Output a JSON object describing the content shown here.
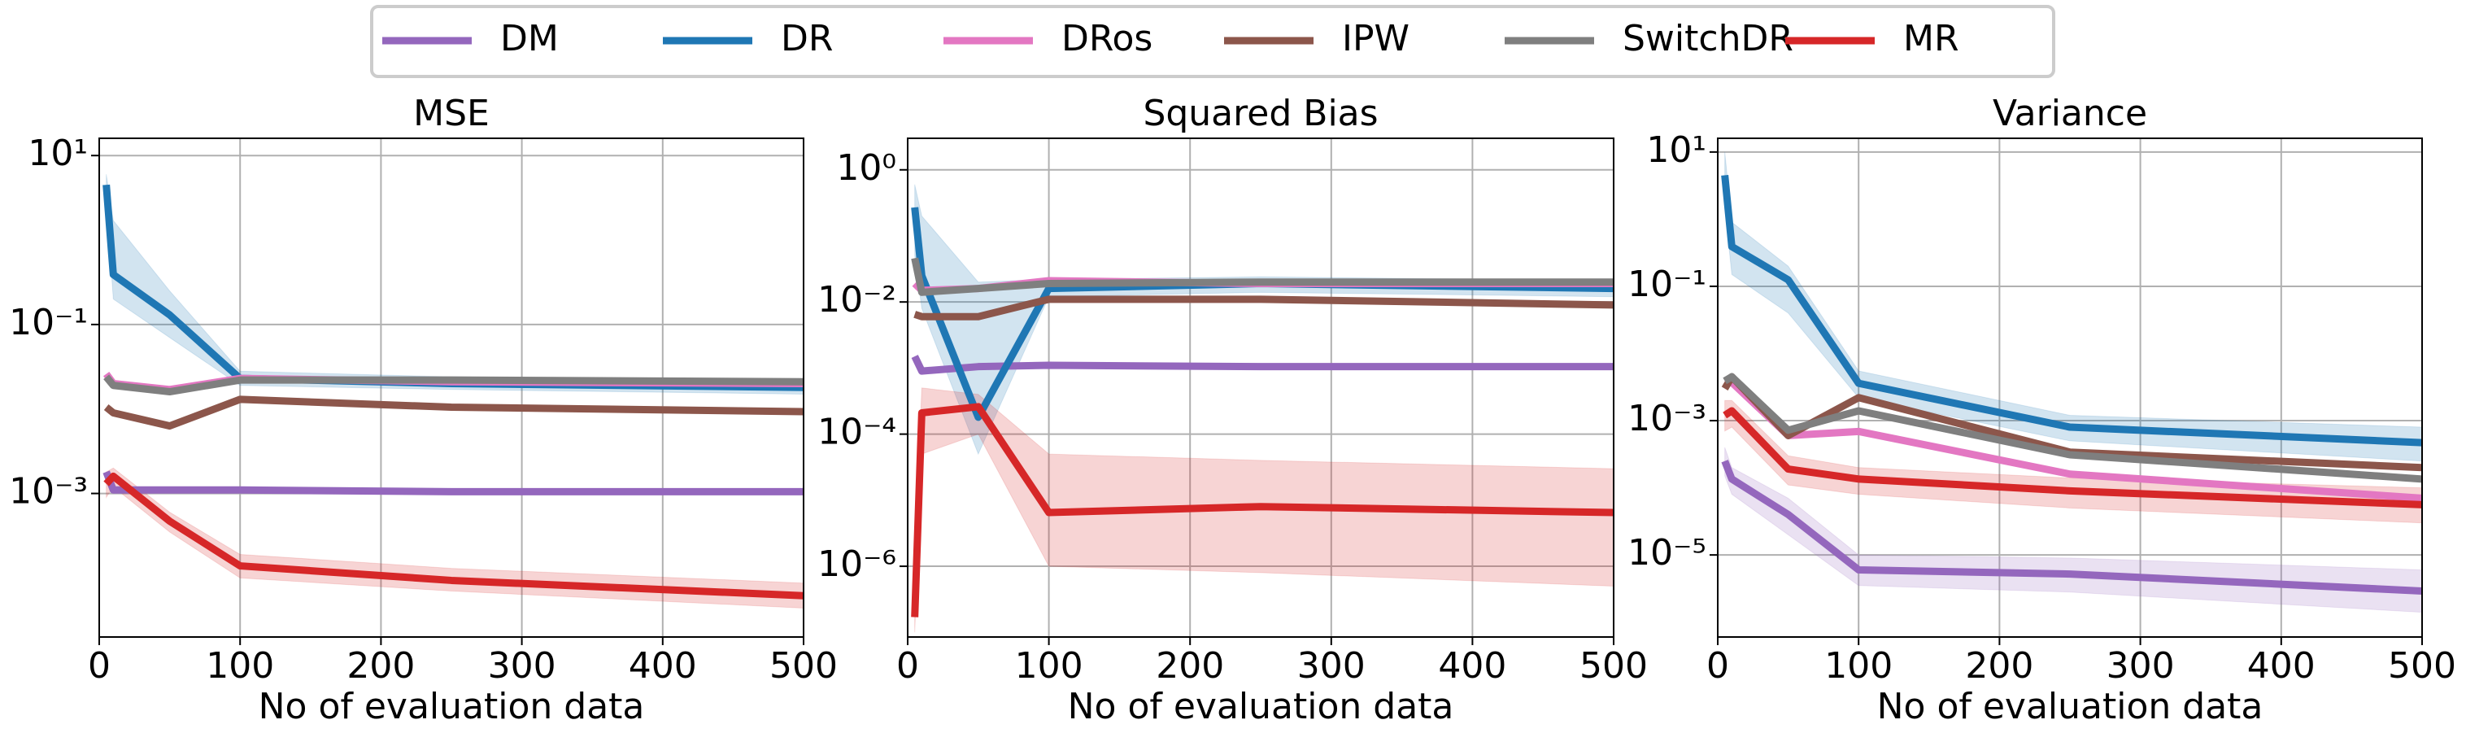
{
  "legend_position": "upper center",
  "chart_data": [
    {
      "type": "line",
      "title": "MSE",
      "xlabel": "No of evaluation data",
      "log_y": true,
      "grid": true,
      "x": [
        5,
        10,
        50,
        100,
        250,
        500
      ],
      "xlim": [
        0,
        500
      ],
      "xticks": [
        0,
        100,
        200,
        300,
        400,
        500
      ],
      "ylim": [
        2e-05,
        16
      ],
      "yticks": [
        {
          "value": 10,
          "label": "10¹"
        },
        {
          "value": 0.1,
          "label": "10⁻¹"
        },
        {
          "value": 0.001,
          "label": "10⁻³"
        }
      ],
      "series": [
        {
          "name": "DM",
          "color": "#9467bd",
          "values": [
            0.0018,
            0.0011,
            0.0011,
            0.0011,
            0.00105,
            0.00105
          ]
        },
        {
          "name": "DR",
          "color": "#1f77b4",
          "values": [
            4.5,
            0.39,
            0.13,
            0.023,
            0.02,
            0.018
          ],
          "band_lower": [
            3,
            0.2,
            0.07,
            0.019,
            0.017,
            0.015
          ],
          "band_upper": [
            6,
            1.7,
            0.25,
            0.028,
            0.024,
            0.022
          ]
        },
        {
          "name": "DRos",
          "color": "#e377c2",
          "values": [
            0.026,
            0.02,
            0.017,
            0.023,
            0.021,
            0.02
          ]
        },
        {
          "name": "IPW",
          "color": "#8c564b",
          "values": [
            0.0105,
            0.009,
            0.0063,
            0.013,
            0.0105,
            0.0093
          ]
        },
        {
          "name": "SwitchDR",
          "color": "#7f7f7f",
          "values": [
            0.024,
            0.019,
            0.016,
            0.022,
            0.022,
            0.021
          ]
        },
        {
          "name": "MR",
          "color": "#d62728",
          "values": [
            0.0013,
            0.0016,
            0.00047,
            0.000139,
            9.35e-05,
            6.17e-05
          ],
          "band_lower": [
            0.0009,
            0.0012,
            0.00035,
            0.0001,
            7e-05,
            4.4e-05
          ],
          "band_upper": [
            0.0018,
            0.002,
            0.0006,
            0.00019,
            0.00013,
            8.7e-05
          ]
        }
      ]
    },
    {
      "type": "line",
      "title": "Squared Bias",
      "xlabel": "No of evaluation data",
      "log_y": true,
      "grid": true,
      "x": [
        5,
        10,
        50,
        100,
        250,
        500
      ],
      "xlim": [
        0,
        500
      ],
      "xticks": [
        0,
        100,
        200,
        300,
        400,
        500
      ],
      "ylim": [
        8.5e-08,
        3
      ],
      "yticks": [
        {
          "value": 1,
          "label": "10⁰"
        },
        {
          "value": 0.01,
          "label": "10⁻²"
        },
        {
          "value": 0.0001,
          "label": "10⁻⁴"
        },
        {
          "value": 1e-06,
          "label": "10⁻⁶"
        }
      ],
      "series": [
        {
          "name": "DM",
          "color": "#9467bd",
          "values": [
            0.0015,
            0.0009,
            0.00105,
            0.0011,
            0.00105,
            0.00105
          ]
        },
        {
          "name": "DR",
          "color": "#1f77b4",
          "values": [
            0.27,
            0.025,
            0.00018,
            0.016,
            0.019,
            0.016
          ],
          "band_lower": [
            0.05,
            0.008,
            5e-05,
            0.012,
            0.014,
            0.012
          ],
          "band_upper": [
            0.6,
            0.2,
            0.02,
            0.022,
            0.024,
            0.021
          ]
        },
        {
          "name": "DRos",
          "color": "#e377c2",
          "values": [
            0.019,
            0.015,
            0.016,
            0.021,
            0.019,
            0.019
          ]
        },
        {
          "name": "IPW",
          "color": "#8c564b",
          "values": [
            0.0065,
            0.006,
            0.006,
            0.011,
            0.011,
            0.009
          ]
        },
        {
          "name": "SwitchDR",
          "color": "#7f7f7f",
          "values": [
            0.046,
            0.014,
            0.016,
            0.019,
            0.02,
            0.02
          ]
        },
        {
          "name": "MR",
          "color": "#d62728",
          "values": [
            1.7e-07,
            0.00021,
            0.00026,
            6.5e-06,
            8e-06,
            6.5e-06
          ],
          "band_lower": [
            1e-07,
            5e-05,
            0.0001,
            1e-06,
            8e-07,
            5e-07
          ],
          "band_upper": [
            1e-06,
            0.0005,
            0.0004,
            5e-05,
            4e-05,
            3e-05
          ]
        }
      ]
    },
    {
      "type": "line",
      "title": "Variance",
      "xlabel": "No of evaluation data",
      "log_y": true,
      "grid": true,
      "x": [
        5,
        10,
        50,
        100,
        250,
        500
      ],
      "xlim": [
        0,
        500
      ],
      "xticks": [
        0,
        100,
        200,
        300,
        400,
        500
      ],
      "ylim": [
        6e-07,
        16
      ],
      "yticks": [
        {
          "value": 10,
          "label": "10¹"
        },
        {
          "value": 0.1,
          "label": "10⁻¹"
        },
        {
          "value": 0.001,
          "label": "10⁻³"
        },
        {
          "value": 1e-05,
          "label": "10⁻⁵"
        }
      ],
      "series": [
        {
          "name": "DM",
          "color": "#9467bd",
          "values": [
            0.00025,
            0.000135,
            4e-05,
            6e-06,
            5.2e-06,
            2.9e-06
          ],
          "band_lower": [
            0.00015,
            8e-05,
            2e-05,
            3.5e-06,
            2.8e-06,
            1.4e-06
          ],
          "band_upper": [
            0.0004,
            0.0002,
            7e-05,
            1e-05,
            9e-06,
            6e-06
          ]
        },
        {
          "name": "DR",
          "color": "#1f77b4",
          "values": [
            4.5,
            0.39,
            0.125,
            0.0036,
            0.0008,
            0.00047
          ],
          "band_lower": [
            1.5,
            0.15,
            0.04,
            0.0022,
            0.0005,
            0.00025
          ],
          "band_upper": [
            10,
            0.9,
            0.2,
            0.0055,
            0.0012,
            0.0008
          ]
        },
        {
          "name": "DRos",
          "color": "#e377c2",
          "values": [
            0.0037,
            0.0037,
            0.0006,
            0.00069,
            0.00016,
            7e-05
          ]
        },
        {
          "name": "IPW",
          "color": "#8c564b",
          "values": [
            0.003,
            0.0045,
            0.0006,
            0.0022,
            0.00034,
            0.0002
          ]
        },
        {
          "name": "SwitchDR",
          "color": "#7f7f7f",
          "values": [
            0.0039,
            0.0045,
            0.00072,
            0.0014,
            0.00031,
            0.000135
          ]
        },
        {
          "name": "MR",
          "color": "#d62728",
          "values": [
            0.0012,
            0.0014,
            0.00019,
            0.000135,
            9e-05,
            5.6e-05
          ],
          "band_lower": [
            0.0007,
            0.0008,
            0.00011,
            8e-05,
            5e-05,
            3e-05
          ],
          "band_upper": [
            0.002,
            0.002,
            0.0003,
            0.0002,
            0.00014,
            0.0001
          ]
        }
      ]
    }
  ]
}
